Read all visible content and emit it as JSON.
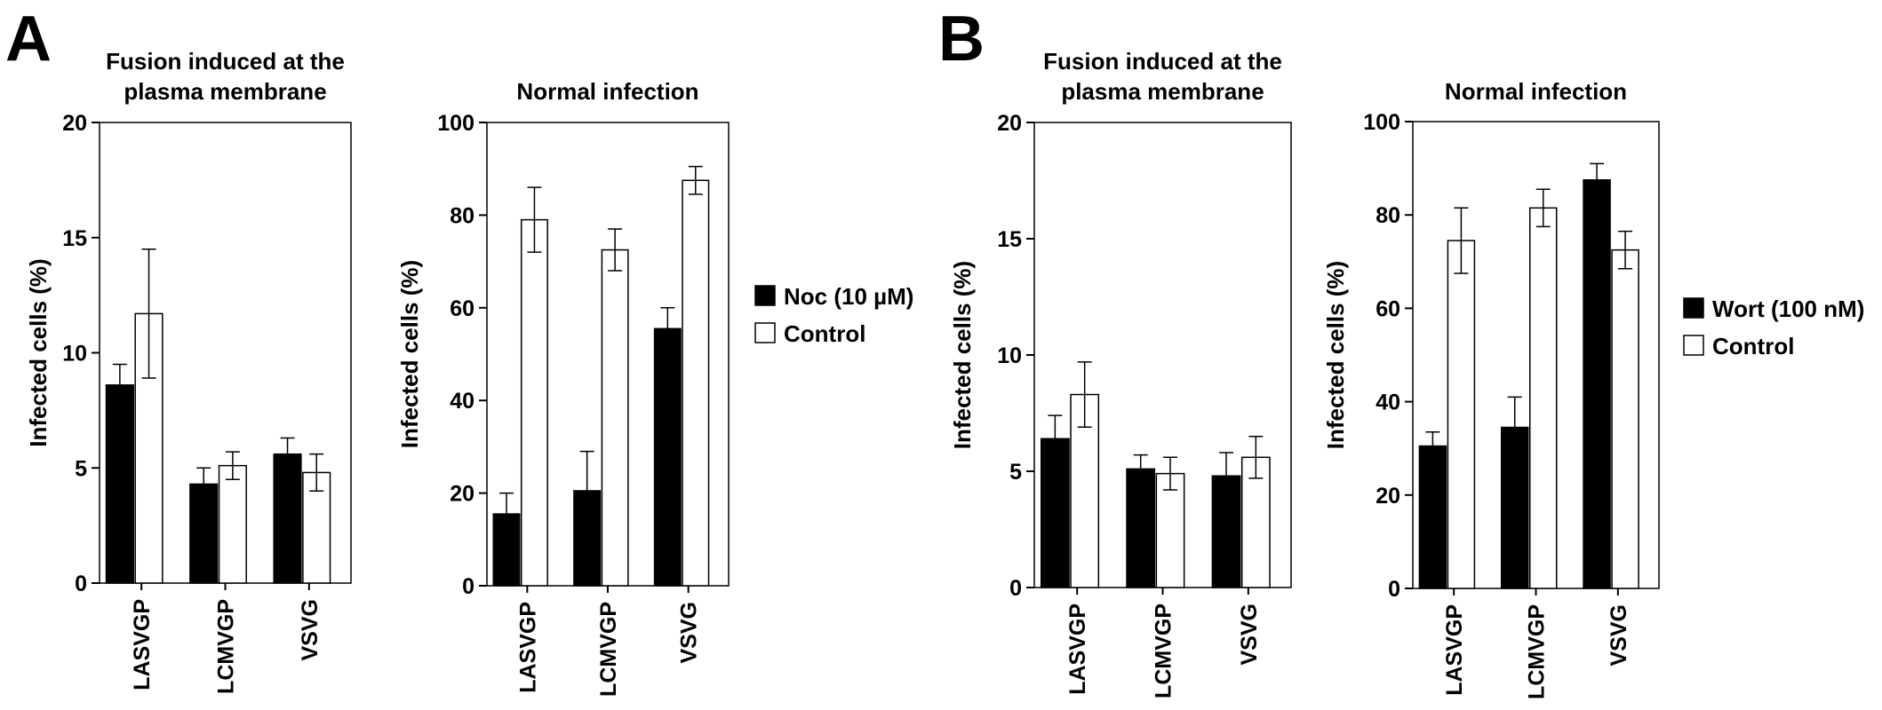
{
  "panels": [
    {
      "letter": "A",
      "legend": {
        "black_label": "Noc (10 µM)",
        "white_label": "Control"
      },
      "charts": [
        {
          "type": "bar",
          "title_lines": [
            "Fusion induced at the",
            "plasma membrane"
          ],
          "ylabel": "Infected cells (%)",
          "ylim": [
            0,
            20
          ],
          "yticks": [
            0,
            5,
            10,
            15,
            20
          ],
          "categories": [
            "LASVGP",
            "LCMVGP",
            "VSVG"
          ],
          "series": [
            {
              "name": "Noc (10 µM)",
              "fill": "#000000",
              "values": [
                8.6,
                4.3,
                5.6
              ],
              "errors": [
                0.9,
                0.7,
                0.7
              ]
            },
            {
              "name": "Control",
              "fill": "#ffffff",
              "values": [
                11.7,
                5.1,
                4.8
              ],
              "errors": [
                2.8,
                0.6,
                0.8
              ]
            }
          ]
        },
        {
          "type": "bar",
          "title_lines": [
            "Normal infection"
          ],
          "ylabel": "Infected cells (%)",
          "ylim": [
            0,
            100
          ],
          "yticks": [
            0,
            20,
            40,
            60,
            80,
            100
          ],
          "categories": [
            "LASVGP",
            "LCMVGP",
            "VSVG"
          ],
          "series": [
            {
              "name": "Noc (10 µM)",
              "fill": "#000000",
              "values": [
                15.5,
                20.5,
                55.5
              ],
              "errors": [
                4.5,
                8.5,
                4.5
              ]
            },
            {
              "name": "Control",
              "fill": "#ffffff",
              "values": [
                79,
                72.5,
                87.5
              ],
              "errors": [
                7,
                4.5,
                3
              ]
            }
          ]
        }
      ]
    },
    {
      "letter": "B",
      "legend": {
        "black_label": "Wort (100 nM)",
        "white_label": "Control"
      },
      "charts": [
        {
          "type": "bar",
          "title_lines": [
            "Fusion induced at the",
            "plasma membrane"
          ],
          "ylabel": "Infected cells (%)",
          "ylim": [
            0,
            20
          ],
          "yticks": [
            0,
            5,
            10,
            15,
            20
          ],
          "categories": [
            "LASVGP",
            "LCMVGP",
            "VSVG"
          ],
          "series": [
            {
              "name": "Wort (100 nM)",
              "fill": "#000000",
              "values": [
                6.4,
                5.1,
                4.8
              ],
              "errors": [
                1.0,
                0.6,
                1.0
              ]
            },
            {
              "name": "Control",
              "fill": "#ffffff",
              "values": [
                8.3,
                4.9,
                5.6
              ],
              "errors": [
                1.4,
                0.7,
                0.9
              ]
            }
          ]
        },
        {
          "type": "bar",
          "title_lines": [
            "Normal infection"
          ],
          "ylabel": "Infected cells (%)",
          "ylim": [
            0,
            100
          ],
          "yticks": [
            0,
            20,
            40,
            60,
            80,
            100
          ],
          "categories": [
            "LASVGP",
            "LCMVGP",
            "VSVG"
          ],
          "series": [
            {
              "name": "Wort (100 nM)",
              "fill": "#000000",
              "values": [
                30.5,
                34.5,
                87.5
              ],
              "errors": [
                3,
                6.5,
                3.5
              ]
            },
            {
              "name": "Control",
              "fill": "#ffffff",
              "values": [
                74.5,
                81.5,
                72.5
              ],
              "errors": [
                7,
                4,
                4
              ]
            }
          ]
        }
      ]
    }
  ],
  "chart_data": [
    {
      "type": "bar",
      "panel": "A",
      "title": "Fusion induced at the plasma membrane",
      "ylabel": "Infected cells (%)",
      "ylim": [
        0,
        20
      ],
      "categories": [
        "LASVGP",
        "LCMVGP",
        "VSVG"
      ],
      "series": [
        {
          "name": "Noc (10 µM)",
          "values": [
            8.6,
            4.3,
            5.6
          ],
          "errors": [
            0.9,
            0.7,
            0.7
          ]
        },
        {
          "name": "Control",
          "values": [
            11.7,
            5.1,
            4.8
          ],
          "errors": [
            2.8,
            0.6,
            0.8
          ]
        }
      ],
      "legend": "right"
    },
    {
      "type": "bar",
      "panel": "A",
      "title": "Normal infection",
      "ylabel": "Infected cells (%)",
      "ylim": [
        0,
        100
      ],
      "categories": [
        "LASVGP",
        "LCMVGP",
        "VSVG"
      ],
      "series": [
        {
          "name": "Noc (10 µM)",
          "values": [
            15.5,
            20.5,
            55.5
          ],
          "errors": [
            4.5,
            8.5,
            4.5
          ]
        },
        {
          "name": "Control",
          "values": [
            79,
            72.5,
            87.5
          ],
          "errors": [
            7,
            4.5,
            3
          ]
        }
      ],
      "legend": "right"
    },
    {
      "type": "bar",
      "panel": "B",
      "title": "Fusion induced at the plasma membrane",
      "ylabel": "Infected cells (%)",
      "ylim": [
        0,
        20
      ],
      "categories": [
        "LASVGP",
        "LCMVGP",
        "VSVG"
      ],
      "series": [
        {
          "name": "Wort (100 nM)",
          "values": [
            6.4,
            5.1,
            4.8
          ],
          "errors": [
            1.0,
            0.6,
            1.0
          ]
        },
        {
          "name": "Control",
          "values": [
            8.3,
            4.9,
            5.6
          ],
          "errors": [
            1.4,
            0.7,
            0.9
          ]
        }
      ],
      "legend": "right"
    },
    {
      "type": "bar",
      "panel": "B",
      "title": "Normal infection",
      "ylabel": "Infected cells (%)",
      "ylim": [
        0,
        100
      ],
      "categories": [
        "LASVGP",
        "LCMVGP",
        "VSVG"
      ],
      "series": [
        {
          "name": "Wort (100 nM)",
          "values": [
            30.5,
            34.5,
            87.5
          ],
          "errors": [
            3,
            6.5,
            3.5
          ]
        },
        {
          "name": "Control",
          "values": [
            74.5,
            81.5,
            72.5
          ],
          "errors": [
            7,
            4,
            4
          ]
        }
      ],
      "legend": "right"
    }
  ]
}
